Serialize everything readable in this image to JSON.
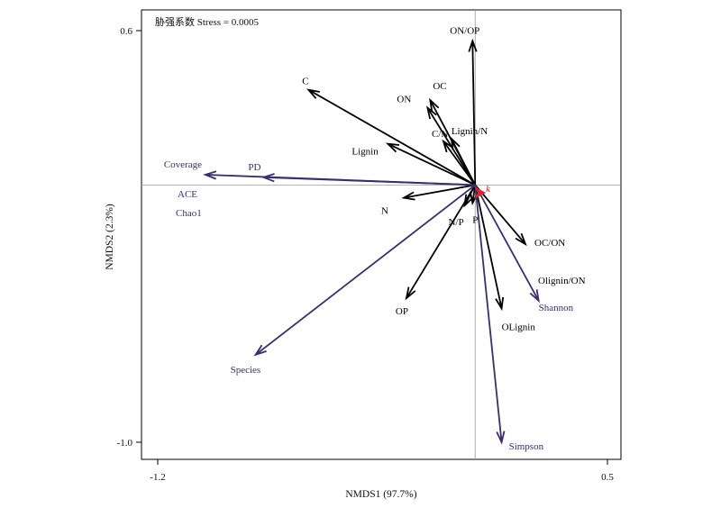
{
  "chart_data": {
    "type": "vector-biplot",
    "title": "胁强系数 Stress = 0.0005",
    "xlabel": "NMDS1 (97.7%)",
    "ylabel": "NMDS2 (2.3%)",
    "xlim": [
      -1.2,
      0.5
    ],
    "ylim": [
      -1.0,
      0.6
    ],
    "xticks": [
      {
        "value": -1.2,
        "label": "-1.2"
      },
      {
        "value": 0.5,
        "label": "0.5"
      }
    ],
    "yticks": [
      {
        "value": 0.6,
        "label": "0.6"
      },
      {
        "value": -1.0,
        "label": "-1.0"
      }
    ],
    "reference_lines": {
      "x": 0,
      "y": 0
    },
    "grid": false,
    "series": [
      {
        "group": "environmental",
        "color": "#000000",
        "vectors": [
          {
            "label": "ON/OP",
            "x": -0.01,
            "y": 0.56
          },
          {
            "label": "C",
            "x": -0.63,
            "y": 0.37
          },
          {
            "label": "ON",
            "x": -0.18,
            "y": 0.3
          },
          {
            "label": "OC",
            "x": -0.17,
            "y": 0.33
          },
          {
            "label": "C/N",
            "x": -0.12,
            "y": 0.17
          },
          {
            "label": "Lignin/N",
            "x": -0.09,
            "y": 0.18
          },
          {
            "label": "Lignin",
            "x": -0.33,
            "y": 0.16
          },
          {
            "label": "N",
            "x": -0.27,
            "y": -0.05
          },
          {
            "label": "N/P",
            "x": -0.04,
            "y": -0.08
          },
          {
            "label": "P",
            "x": -0.01,
            "y": -0.07
          },
          {
            "label": "OC/ON",
            "x": 0.19,
            "y": -0.23
          },
          {
            "label": "OP",
            "x": -0.26,
            "y": -0.44
          },
          {
            "label": "OLignin",
            "x": 0.1,
            "y": -0.48
          }
        ]
      },
      {
        "group": "diversity",
        "color": "#3d2b73",
        "vectors": [
          {
            "label": "Coverage",
            "x": -1.02,
            "y": 0.04
          },
          {
            "label": "PD",
            "x": -0.8,
            "y": 0.03
          },
          {
            "label": "Species",
            "x": -0.83,
            "y": -0.66
          },
          {
            "label": "Shannon",
            "x": 0.24,
            "y": -0.45
          },
          {
            "label": "Simpson",
            "x": 0.1,
            "y": -1.0
          }
        ]
      }
    ],
    "labels_without_arrows": [
      {
        "label": "ACE",
        "color": "#3d2b73"
      },
      {
        "label": "Chao1",
        "color": "#3d2b73"
      },
      {
        "label": "Olignin/ON",
        "color": "#000000"
      }
    ],
    "site_marker": {
      "label": "k",
      "x": 0.02,
      "y": -0.03,
      "color": "#e0242b"
    }
  }
}
